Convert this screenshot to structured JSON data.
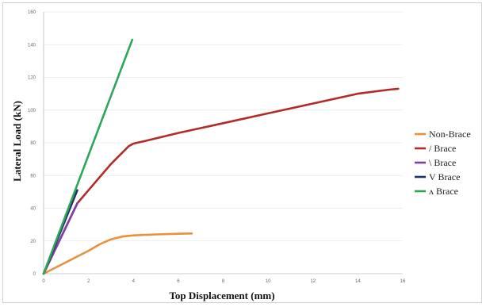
{
  "chart_data": {
    "type": "line",
    "title": "",
    "xlabel": "Top Displacement (mm)",
    "ylabel": "Lateral Load (kN)",
    "xlim": [
      0,
      16
    ],
    "ylim": [
      0,
      160
    ],
    "xticks": [
      "0",
      "2",
      "4",
      "6",
      "8",
      "10",
      "12",
      "14",
      "16"
    ],
    "yticks": [
      "0",
      "20",
      "40",
      "60",
      "80",
      "100",
      "120",
      "140",
      "160"
    ],
    "grid": true,
    "legend_position": "right",
    "series": [
      {
        "name": "Non-Brace",
        "color": "#E8913A",
        "x": [
          0,
          1,
          2,
          2.5,
          3,
          3.5,
          4,
          5,
          6,
          6.6
        ],
        "y": [
          0,
          7,
          14,
          18,
          21,
          22.7,
          23.4,
          24,
          24.4,
          24.6
        ]
      },
      {
        "name": "/ Brace",
        "color": "#B22A2A",
        "x": [
          0,
          1.5,
          2,
          3,
          3.8,
          4,
          4.5,
          6,
          8,
          10,
          12,
          14,
          15.4,
          15.8
        ],
        "y": [
          0,
          43,
          51,
          67,
          78,
          79.5,
          81,
          86,
          92,
          98,
          104,
          110,
          112.5,
          113
        ]
      },
      {
        "name": "\\ Brace",
        "color": "#7E3FA6",
        "x": [
          0,
          1.5
        ],
        "y": [
          0,
          43
        ]
      },
      {
        "name": "V Brace",
        "color": "#1F2F6B",
        "x": [
          0,
          1.5
        ],
        "y": [
          0,
          51
        ]
      },
      {
        "name": "ʌ Brace",
        "color": "#2DA65A",
        "x": [
          0,
          3.95
        ],
        "y": [
          0,
          143
        ]
      }
    ]
  }
}
